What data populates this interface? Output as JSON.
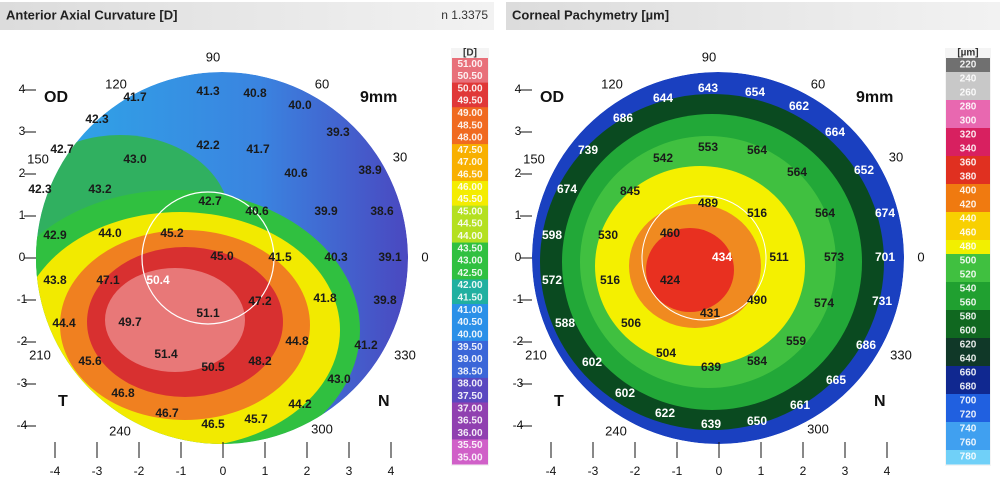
{
  "panels": [
    {
      "title": "Anterior Axial Curvature [D]",
      "note": "n 1.3375",
      "scale": {
        "unit": "[D]",
        "labels": [
          "51.00",
          "50.50",
          "50.00",
          "49.50",
          "49.00",
          "48.50",
          "48.00",
          "47.50",
          "47.00",
          "46.50",
          "46.00",
          "45.50",
          "45.00",
          "44.50",
          "44.00",
          "43.50",
          "43.00",
          "42.50",
          "42.00",
          "41.50",
          "41.00",
          "40.50",
          "40.00",
          "39.50",
          "39.00",
          "38.50",
          "38.00",
          "37.50",
          "37.00",
          "36.50",
          "36.00",
          "35.50",
          "35.00"
        ],
        "colors": [
          "#e8707a",
          "#e03838",
          "#f06a20",
          "#f8b000",
          "#f4ec00",
          "#b4e020",
          "#30c040",
          "#20b0a0",
          "#2a90e8",
          "#3a66d8",
          "#5a48c0",
          "#9040b0",
          "#d060c8"
        ]
      },
      "angles": [
        "90",
        "120",
        "60",
        "150",
        "30",
        "0",
        "210",
        "330",
        "240",
        "300"
      ],
      "y_ticks": [
        "4",
        "3",
        "2",
        "1",
        "0",
        "-1",
        "-2",
        "-3",
        "-4"
      ],
      "x_ticks": [
        "-4",
        "-3",
        "-2",
        "-1",
        "0",
        "1",
        "2",
        "3",
        "4"
      ],
      "eye": "OD",
      "size": "9mm",
      "temporal": "T",
      "nasal": "N",
      "values": [
        "41.3",
        "41.7",
        "40.8",
        "40.0",
        "42.3",
        "39.3",
        "42.7",
        "43.0",
        "42.2",
        "41.7",
        "40.6",
        "38.9",
        "42.3",
        "43.2",
        "42.7",
        "40.6",
        "39.9",
        "38.6",
        "42.9",
        "44.0",
        "45.2",
        "45.0",
        "41.5",
        "40.3",
        "39.1",
        "43.8",
        "47.1",
        "50.4",
        "47.2",
        "41.8",
        "39.8",
        "51.1",
        "44.4",
        "49.7",
        "44.8",
        "41.2",
        "45.6",
        "51.4",
        "50.5",
        "48.2",
        "43.0",
        "46.8",
        "44.2",
        "46.7",
        "46.5",
        "45.7"
      ]
    },
    {
      "title": "Corneal Pachymetry [µm]",
      "scale": {
        "unit": "[µm]",
        "labels": [
          "220",
          "240",
          "260",
          "280",
          "300",
          "320",
          "340",
          "360",
          "380",
          "400",
          "420",
          "440",
          "460",
          "480",
          "500",
          "520",
          "540",
          "560",
          "580",
          "600",
          "620",
          "640",
          "660",
          "680",
          "700",
          "720",
          "740",
          "760",
          "780"
        ],
        "colors": [
          "#707070",
          "#c8c8c8",
          "#e868b0",
          "#d82060",
          "#e03020",
          "#f07a10",
          "#f8d000",
          "#f2f000",
          "#40c040",
          "#20a030",
          "#106820",
          "#103828",
          "#102890",
          "#2060e0",
          "#40a0f0",
          "#70d0f8"
        ]
      },
      "angles": [
        "90",
        "120",
        "60",
        "150",
        "30",
        "0",
        "210",
        "330",
        "240",
        "300"
      ],
      "y_ticks": [
        "4",
        "3",
        "2",
        "1",
        "0",
        "-1",
        "-2",
        "-3",
        "-4"
      ],
      "x_ticks": [
        "-4",
        "-3",
        "-2",
        "-1",
        "0",
        "1",
        "2",
        "3",
        "4"
      ],
      "eye": "OD",
      "size": "9mm",
      "temporal": "T",
      "nasal": "N",
      "values": [
        643,
        654,
        644,
        662,
        686,
        664,
        553,
        564,
        542,
        739,
        564,
        652,
        845,
        674,
        489,
        516,
        564,
        674,
        598,
        530,
        460,
        434,
        511,
        573,
        701,
        572,
        516,
        424,
        490,
        574,
        731,
        431,
        588,
        506,
        559,
        686,
        602,
        504,
        639,
        584,
        665,
        602,
        661,
        622,
        639,
        650
      ]
    }
  ]
}
